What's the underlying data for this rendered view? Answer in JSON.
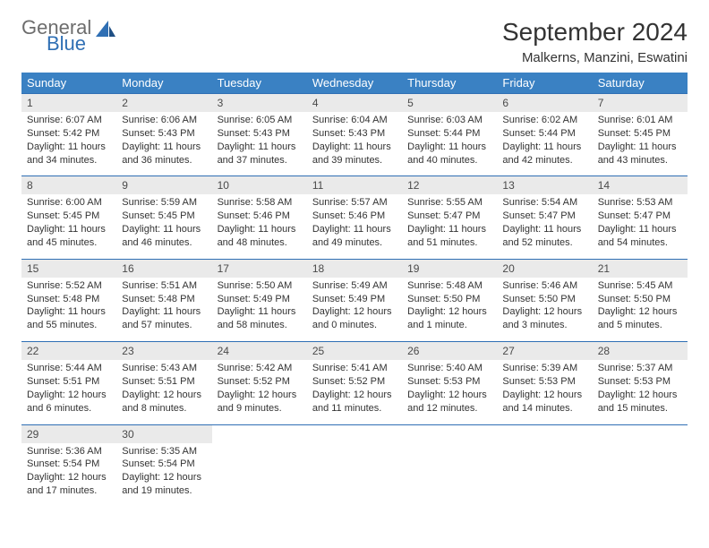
{
  "logo": {
    "line1": "General",
    "line2": "Blue"
  },
  "title": "September 2024",
  "location": "Malkerns, Manzini, Eswatini",
  "colors": {
    "header_bg": "#3a81c3",
    "header_text": "#ffffff",
    "daynum_bg": "#eaeaea",
    "border_accent": "#2f6fb4",
    "body_text": "#333333",
    "logo_gray": "#6d6d6d",
    "logo_blue": "#2f6fb4"
  },
  "weekdays": [
    "Sunday",
    "Monday",
    "Tuesday",
    "Wednesday",
    "Thursday",
    "Friday",
    "Saturday"
  ],
  "weeks": [
    [
      {
        "n": "1",
        "sr": "6:07 AM",
        "ss": "5:42 PM",
        "dl": "11 hours and 34 minutes."
      },
      {
        "n": "2",
        "sr": "6:06 AM",
        "ss": "5:43 PM",
        "dl": "11 hours and 36 minutes."
      },
      {
        "n": "3",
        "sr": "6:05 AM",
        "ss": "5:43 PM",
        "dl": "11 hours and 37 minutes."
      },
      {
        "n": "4",
        "sr": "6:04 AM",
        "ss": "5:43 PM",
        "dl": "11 hours and 39 minutes."
      },
      {
        "n": "5",
        "sr": "6:03 AM",
        "ss": "5:44 PM",
        "dl": "11 hours and 40 minutes."
      },
      {
        "n": "6",
        "sr": "6:02 AM",
        "ss": "5:44 PM",
        "dl": "11 hours and 42 minutes."
      },
      {
        "n": "7",
        "sr": "6:01 AM",
        "ss": "5:45 PM",
        "dl": "11 hours and 43 minutes."
      }
    ],
    [
      {
        "n": "8",
        "sr": "6:00 AM",
        "ss": "5:45 PM",
        "dl": "11 hours and 45 minutes."
      },
      {
        "n": "9",
        "sr": "5:59 AM",
        "ss": "5:45 PM",
        "dl": "11 hours and 46 minutes."
      },
      {
        "n": "10",
        "sr": "5:58 AM",
        "ss": "5:46 PM",
        "dl": "11 hours and 48 minutes."
      },
      {
        "n": "11",
        "sr": "5:57 AM",
        "ss": "5:46 PM",
        "dl": "11 hours and 49 minutes."
      },
      {
        "n": "12",
        "sr": "5:55 AM",
        "ss": "5:47 PM",
        "dl": "11 hours and 51 minutes."
      },
      {
        "n": "13",
        "sr": "5:54 AM",
        "ss": "5:47 PM",
        "dl": "11 hours and 52 minutes."
      },
      {
        "n": "14",
        "sr": "5:53 AM",
        "ss": "5:47 PM",
        "dl": "11 hours and 54 minutes."
      }
    ],
    [
      {
        "n": "15",
        "sr": "5:52 AM",
        "ss": "5:48 PM",
        "dl": "11 hours and 55 minutes."
      },
      {
        "n": "16",
        "sr": "5:51 AM",
        "ss": "5:48 PM",
        "dl": "11 hours and 57 minutes."
      },
      {
        "n": "17",
        "sr": "5:50 AM",
        "ss": "5:49 PM",
        "dl": "11 hours and 58 minutes."
      },
      {
        "n": "18",
        "sr": "5:49 AM",
        "ss": "5:49 PM",
        "dl": "12 hours and 0 minutes."
      },
      {
        "n": "19",
        "sr": "5:48 AM",
        "ss": "5:50 PM",
        "dl": "12 hours and 1 minute."
      },
      {
        "n": "20",
        "sr": "5:46 AM",
        "ss": "5:50 PM",
        "dl": "12 hours and 3 minutes."
      },
      {
        "n": "21",
        "sr": "5:45 AM",
        "ss": "5:50 PM",
        "dl": "12 hours and 5 minutes."
      }
    ],
    [
      {
        "n": "22",
        "sr": "5:44 AM",
        "ss": "5:51 PM",
        "dl": "12 hours and 6 minutes."
      },
      {
        "n": "23",
        "sr": "5:43 AM",
        "ss": "5:51 PM",
        "dl": "12 hours and 8 minutes."
      },
      {
        "n": "24",
        "sr": "5:42 AM",
        "ss": "5:52 PM",
        "dl": "12 hours and 9 minutes."
      },
      {
        "n": "25",
        "sr": "5:41 AM",
        "ss": "5:52 PM",
        "dl": "12 hours and 11 minutes."
      },
      {
        "n": "26",
        "sr": "5:40 AM",
        "ss": "5:53 PM",
        "dl": "12 hours and 12 minutes."
      },
      {
        "n": "27",
        "sr": "5:39 AM",
        "ss": "5:53 PM",
        "dl": "12 hours and 14 minutes."
      },
      {
        "n": "28",
        "sr": "5:37 AM",
        "ss": "5:53 PM",
        "dl": "12 hours and 15 minutes."
      }
    ],
    [
      {
        "n": "29",
        "sr": "5:36 AM",
        "ss": "5:54 PM",
        "dl": "12 hours and 17 minutes."
      },
      {
        "n": "30",
        "sr": "5:35 AM",
        "ss": "5:54 PM",
        "dl": "12 hours and 19 minutes."
      },
      null,
      null,
      null,
      null,
      null
    ]
  ],
  "labels": {
    "sunrise": "Sunrise:",
    "sunset": "Sunset:",
    "daylight": "Daylight:"
  }
}
